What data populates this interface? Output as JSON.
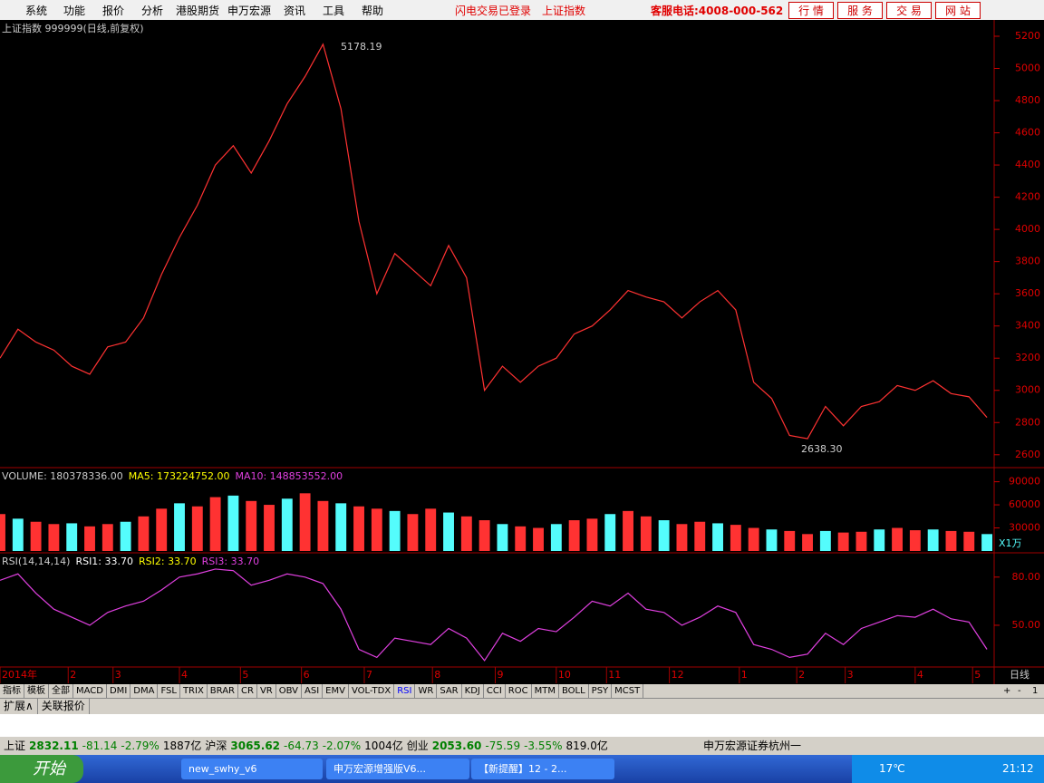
{
  "menu": {
    "items": [
      "系统",
      "功能",
      "报价",
      "分析",
      "港股期货",
      "申万宏源",
      "资讯",
      "工具",
      "帮助"
    ],
    "status": [
      "闪电交易已登录",
      "上证指数"
    ],
    "hotline": "客服电话:4008-000-562",
    "buttons": [
      "行 情",
      "服 务",
      "交 易",
      "网 站"
    ]
  },
  "chart_data": [
    {
      "type": "line",
      "title": "上证指数 999999(日线,前复权)",
      "annotations": [
        "5178.19",
        "2638.30"
      ],
      "color": "#ff3232",
      "values": [
        3200,
        3380,
        3300,
        3250,
        3150,
        3100,
        3270,
        3300,
        3450,
        3720,
        3950,
        4150,
        4400,
        4520,
        4350,
        4550,
        4780,
        4950,
        5150,
        4750,
        4050,
        3600,
        3850,
        3750,
        3650,
        3900,
        3700,
        3000,
        3150,
        3050,
        3150,
        3200,
        3350,
        3400,
        3500,
        3620,
        3580,
        3550,
        3450,
        3550,
        3620,
        3500,
        3050,
        2950,
        2720,
        2700,
        2900,
        2780,
        2900,
        2930,
        3030,
        3000,
        3060,
        2980,
        2960,
        2832
      ],
      "xlim": [
        0,
        55.3
      ],
      "ylim": [
        2520,
        5290
      ],
      "yticks": [
        2600,
        2800,
        3000,
        3200,
        3400,
        3600,
        3800,
        4000,
        4200,
        4400,
        4600,
        4800,
        5000,
        5200
      ]
    },
    {
      "type": "bar",
      "title": "VOLUME: 180378336.00",
      "legend": [
        "MA5: 173224752.00",
        "MA10: 148853552.00"
      ],
      "unit": "X1万",
      "color": "#ff3232",
      "values": [
        48000,
        42000,
        38000,
        35000,
        36000,
        32000,
        35000,
        38000,
        45000,
        55000,
        62000,
        58000,
        70000,
        72000,
        65000,
        60000,
        68000,
        75000,
        65000,
        62000,
        58000,
        55000,
        52000,
        48000,
        55000,
        50000,
        45000,
        40000,
        35000,
        32000,
        30000,
        35000,
        40000,
        42000,
        48000,
        52000,
        45000,
        40000,
        35000,
        38000,
        36000,
        34000,
        30000,
        28000,
        26000,
        22000,
        26000,
        24000,
        25000,
        28000,
        30000,
        27000,
        28000,
        26000,
        25000,
        22000
      ],
      "xlim": [
        0,
        55.3
      ],
      "ylim": [
        0,
        106000
      ],
      "yticks": [
        30000,
        60000,
        90000
      ]
    },
    {
      "type": "line",
      "title": "RSI(14,14,14)",
      "legend": [
        "RSI1: 33.70",
        "RSI2: 33.70",
        "RSI3: 33.70"
      ],
      "color": "#e040e0",
      "period": "日线",
      "values": [
        78,
        82,
        70,
        60,
        55,
        50,
        58,
        62,
        65,
        72,
        80,
        82,
        85,
        84,
        75,
        78,
        82,
        80,
        76,
        60,
        35,
        30,
        42,
        40,
        38,
        48,
        42,
        28,
        45,
        40,
        48,
        46,
        55,
        65,
        62,
        70,
        60,
        58,
        50,
        55,
        62,
        58,
        38,
        35,
        30,
        32,
        45,
        38,
        48,
        52,
        56,
        55,
        60,
        54,
        52,
        35
      ],
      "xlim": [
        0,
        55.3
      ],
      "ylim": [
        24,
        94
      ],
      "yticks": [
        {
          "value": 50,
          "label": "50.00"
        },
        {
          "value": 80,
          "label": "80.00"
        }
      ],
      "xticks": [
        {
          "value": 0,
          "label": "2014年"
        },
        {
          "value": 3.8,
          "label": "2"
        },
        {
          "value": 6.3,
          "label": "3"
        },
        {
          "value": 10,
          "label": "4"
        },
        {
          "value": 13.4,
          "label": "5"
        },
        {
          "value": 16.8,
          "label": "6"
        },
        {
          "value": 20.3,
          "label": "7"
        },
        {
          "value": 24.1,
          "label": "8"
        },
        {
          "value": 27.6,
          "label": "9"
        },
        {
          "value": 31,
          "label": "10"
        },
        {
          "value": 33.8,
          "label": "11"
        },
        {
          "value": 37.3,
          "label": "12"
        },
        {
          "value": 41.2,
          "label": "1"
        },
        {
          "value": 44.4,
          "label": "2"
        },
        {
          "value": 47.1,
          "label": "3"
        },
        {
          "value": 51,
          "label": "4"
        },
        {
          "value": 54.2,
          "label": "5"
        }
      ]
    }
  ],
  "tabs": [
    "指标",
    "模板",
    "全部",
    "MACD",
    "DMI",
    "DMA",
    "FSL",
    "TRIX",
    "BRAR",
    "CR",
    "VR",
    "OBV",
    "ASI",
    "EMV",
    "VOL-TDX",
    "RSI",
    "WR",
    "SAR",
    "KDJ",
    "CCI",
    "ROC",
    "MTM",
    "BOLL",
    "PSY",
    "MCST"
  ],
  "tab_controls": [
    "+",
    "-",
    "1"
  ],
  "subtabs": [
    "扩展∧",
    "关联报价"
  ],
  "ticker": [
    [
      "上证",
      "2832.11",
      "-81.14",
      "-2.79%",
      "1887亿"
    ],
    [
      "沪深",
      "3065.62",
      "-64.73",
      "-2.07%",
      "1004亿"
    ],
    [
      "创业",
      "2053.60",
      "-75.59",
      "-3.55%",
      "819.0亿"
    ]
  ],
  "broker": "申万宏源证券杭州一",
  "taskbar": {
    "start": "开始",
    "windows": [
      "new_swhy_v6",
      "申万宏源增强版V6...",
      "【新提醒】12 - 2..."
    ],
    "weather": "17℃",
    "clock": "21:12"
  }
}
